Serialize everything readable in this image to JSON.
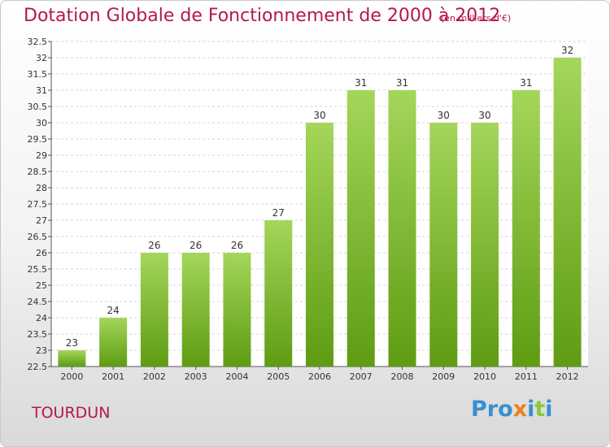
{
  "header": {
    "title": "Dotation Globale de Fonctionnement de 2000 à 2012",
    "subtitle": "(en milliers d'€)"
  },
  "footer": {
    "commune": "TOURDUN",
    "logo_text": "Proxiti"
  },
  "colors": {
    "title": "#b5174f",
    "bar_light": "#a4d65a",
    "bar_dark": "#5e9c12",
    "logo_letters": [
      "#3a8fd1",
      "#3a8fd1",
      "#3a8fd1",
      "#f07d1a",
      "#3a8fd1",
      "#8cc63f",
      "#3a8fd1"
    ]
  },
  "chart_data": {
    "type": "bar",
    "title": "Dotation Globale de Fonctionnement de 2000 à 2012",
    "subtitle": "(en milliers d'€)",
    "categories": [
      "2000",
      "2001",
      "2002",
      "2003",
      "2004",
      "2005",
      "2006",
      "2007",
      "2008",
      "2009",
      "2010",
      "2011",
      "2012"
    ],
    "values": [
      23,
      24,
      26,
      26,
      26,
      27,
      30,
      31,
      31,
      30,
      30,
      31,
      32
    ],
    "data_labels": [
      "23",
      "24",
      "26",
      "26",
      "26",
      "27",
      "30",
      "31",
      "31",
      "30",
      "30",
      "31",
      "32"
    ],
    "ylim": [
      22.5,
      32.5
    ],
    "yticks": [
      "22.5",
      "23",
      "23.5",
      "24",
      "24.5",
      "25",
      "25.5",
      "26",
      "26.5",
      "27",
      "27.5",
      "28",
      "28.5",
      "29",
      "29.5",
      "30",
      "30.5",
      "31",
      "31.5",
      "32",
      "32.5"
    ],
    "xlabel": "",
    "ylabel": "",
    "grid": true
  }
}
